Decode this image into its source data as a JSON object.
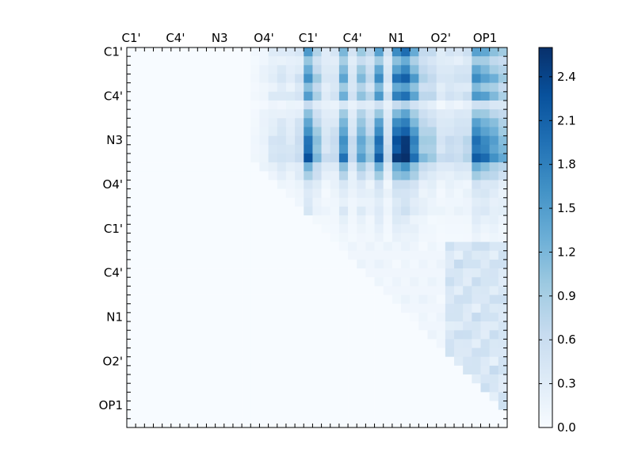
{
  "chart_data": {
    "type": "heatmap",
    "title": "",
    "xlabel": "",
    "ylabel": "",
    "grid": false,
    "legend": "colorbar-right",
    "n_cells": 43,
    "x_tick_labels": [
      "C1'",
      "C4'",
      "N3",
      "O4'",
      "C1'",
      "C4'",
      "N1",
      "O2'",
      "OP1"
    ],
    "y_tick_labels": [
      "C1'",
      "C4'",
      "N3",
      "O4'",
      "C1'",
      "C4'",
      "N1",
      "O2'",
      "OP1"
    ],
    "tick_label_cells": [
      0.5,
      5.5,
      10.5,
      15.5,
      20.5,
      25.5,
      30.5,
      35.5,
      40.5
    ],
    "color_range": [
      0.0,
      2.6
    ],
    "colormap": [
      "#f7fbff",
      "#deebf7",
      "#c6dbef",
      "#9ecae1",
      "#6baed6",
      "#4292c6",
      "#2171b5",
      "#08519c",
      "#08306b"
    ],
    "colorbar": {
      "ticks": [
        0.0,
        0.3,
        0.6,
        0.9,
        1.2,
        1.5,
        1.8,
        2.1,
        2.4
      ],
      "tick_labels": [
        "0.0",
        "0.3",
        "0.6",
        "0.9",
        "1.2",
        "1.5",
        "1.8",
        "2.1",
        "2.4"
      ]
    },
    "row_groups": [
      {
        "rows": [
          0,
          1,
          2,
          3,
          4,
          5,
          6,
          7,
          8,
          9,
          10,
          11,
          12,
          13,
          14,
          15,
          16,
          17,
          18,
          19,
          20,
          21
        ],
        "description": "upper block rows"
      },
      {
        "rows": [
          22,
          23,
          24,
          25,
          26,
          27,
          28,
          29,
          30,
          31,
          32,
          33,
          34,
          35,
          36,
          37,
          38,
          39,
          40,
          41,
          42
        ],
        "description": "lower block rows"
      }
    ],
    "column_profile": [
      0,
      0,
      0,
      0,
      0,
      0,
      0,
      0,
      0,
      0,
      0,
      0,
      0,
      0,
      0.05,
      0.1,
      0.2,
      0.25,
      0.2,
      0.3,
      1.0,
      0.55,
      0.25,
      0.3,
      0.85,
      0.3,
      0.7,
      0.45,
      1.0,
      0.3,
      1.15,
      1.3,
      0.9,
      0.5,
      0.45,
      0.25,
      0.3,
      0.3,
      0.35,
      1.0,
      0.9,
      0.75,
      0.6
    ],
    "row_profile": [
      0.9,
      0.6,
      0.8,
      1.0,
      0.7,
      0.95,
      0.35,
      0.65,
      0.85,
      1.0,
      1.2,
      1.15,
      1.35,
      0.75,
      0.55,
      0.3,
      0.25,
      0.2,
      0.25,
      0.15,
      0.12,
      0.1,
      0.08,
      0.08,
      0.07,
      0.06,
      0.06,
      0.05,
      0.05,
      0.05,
      0.05,
      0.05,
      0.05,
      0.05,
      0.05,
      0.05,
      0.05,
      0.05,
      0.05,
      0.05,
      0.05,
      0.05,
      0.05
    ]
  }
}
